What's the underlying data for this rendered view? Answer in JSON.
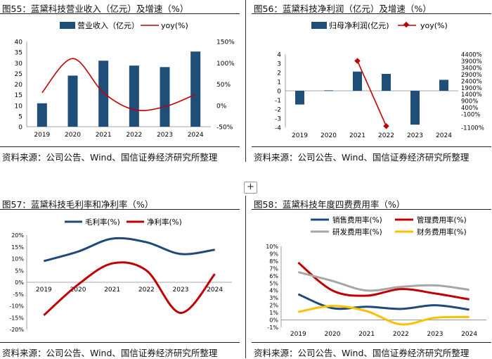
{
  "charts": [
    {
      "title": "图55：蓝黛科技营业收入（亿元）及增速（%）",
      "source": "资料来源：公司公告、Wind、国信证券经济研究所整理"
    },
    {
      "title": "图56：蓝黛科技净利润（亿元）及增速（%）",
      "source": "资料来源：公司公告、Wind、国信证券经济研究所整理"
    },
    {
      "title": "图57：蓝黛科技毛利率和净利率（%）",
      "source": "资料来源：公司公告、Wind、国信证券经济研究所整理"
    },
    {
      "title": "图58：蓝黛科技年度四费费用率（%）",
      "source": "资料来源：公司公告、Wind、国信证券经济研究所整理"
    }
  ],
  "expander_label": "+",
  "colors": {
    "navy": "#1F497D",
    "red": "#C00000",
    "gray": "#A6A6A6",
    "yellow": "#FFC000",
    "bar": "#1F4E79"
  },
  "chart_data": [
    {
      "type": "bar",
      "categories": [
        "2019",
        "2020",
        "2021",
        "2022",
        "2023",
        "2024"
      ],
      "series": [
        {
          "name": "营业收入（亿元）",
          "type": "bar",
          "axis": "left",
          "values": [
            11.0,
            24.0,
            31.0,
            28.7,
            28.0,
            35.3
          ]
        },
        {
          "name": "yoy(%)",
          "type": "line",
          "axis": "right",
          "values": [
            30,
            110,
            30,
            -10,
            -3,
            26
          ]
        }
      ],
      "left_ticks": [
        "0",
        "5",
        "10",
        "15",
        "20",
        "25",
        "30",
        "35",
        "40"
      ],
      "left_ylim": [
        0,
        40
      ],
      "right_ticks": [
        "-50%",
        "0%",
        "50%",
        "100%",
        "150%"
      ],
      "right_ylim": [
        -50,
        150
      ]
    },
    {
      "type": "bar",
      "categories": [
        "2019",
        "2020",
        "2021",
        "2022",
        "2023",
        "2024"
      ],
      "series": [
        {
          "name": "归母净利润(亿元)",
          "type": "bar",
          "axis": "left",
          "values": [
            -1.5,
            0.05,
            2.1,
            1.85,
            -3.7,
            1.2
          ]
        },
        {
          "name": "yoy(%)",
          "type": "line",
          "axis": "right",
          "values": [
            null,
            null,
            3900,
            -1000,
            null,
            null
          ]
        }
      ],
      "left_ticks": [
        "-4",
        "-3",
        "-2",
        "-1",
        "0",
        "1",
        "2",
        "3",
        "4"
      ],
      "left_ylim": [
        -4,
        4
      ],
      "right_ticks": [
        "-1100%",
        "-100%",
        "400%",
        "900%",
        "1400%",
        "1900%",
        "2400%",
        "2900%",
        "3400%",
        "3900%",
        "4400%"
      ],
      "right_ylim": [
        -1100,
        4400
      ]
    },
    {
      "type": "line",
      "categories": [
        "2019",
        "2020",
        "2021",
        "2022",
        "2023",
        "2024"
      ],
      "series": [
        {
          "name": "毛利率(%)",
          "values": [
            9.0,
            13.0,
            18.5,
            17.0,
            12.0,
            13.8
          ]
        },
        {
          "name": "净利率(%)",
          "values": [
            -14.0,
            -1.0,
            8.0,
            5.0,
            -13.0,
            3.5
          ]
        }
      ],
      "y_ticks": [
        "20%",
        "15%",
        "10%",
        "5%",
        "0%",
        "-5%",
        "-10%",
        "-15%",
        "-20%"
      ],
      "ylim": [
        -20,
        20
      ]
    },
    {
      "type": "line",
      "categories": [
        "2019",
        "2020",
        "2021",
        "2022",
        "2023",
        "2024"
      ],
      "series": [
        {
          "name": "销售费用率(%)",
          "values": [
            3.5,
            1.6,
            1.8,
            1.5,
            2.0,
            1.4
          ]
        },
        {
          "name": "管理费用率(%)",
          "values": [
            7.8,
            4.0,
            3.3,
            4.2,
            3.6,
            2.8
          ]
        },
        {
          "name": "研发费用率(%)",
          "values": [
            6.5,
            5.3,
            4.0,
            4.5,
            4.7,
            4.1
          ]
        },
        {
          "name": "财务费用率(%)",
          "values": [
            1.1,
            1.9,
            1.2,
            -0.6,
            0.3,
            0.4
          ]
        }
      ],
      "y_ticks": [
        "10%",
        "9%",
        "8%",
        "7%",
        "6%",
        "5%",
        "4%",
        "3%",
        "2%",
        "1%",
        "0%",
        "-1%"
      ],
      "ylim": [
        -1,
        10
      ]
    }
  ]
}
